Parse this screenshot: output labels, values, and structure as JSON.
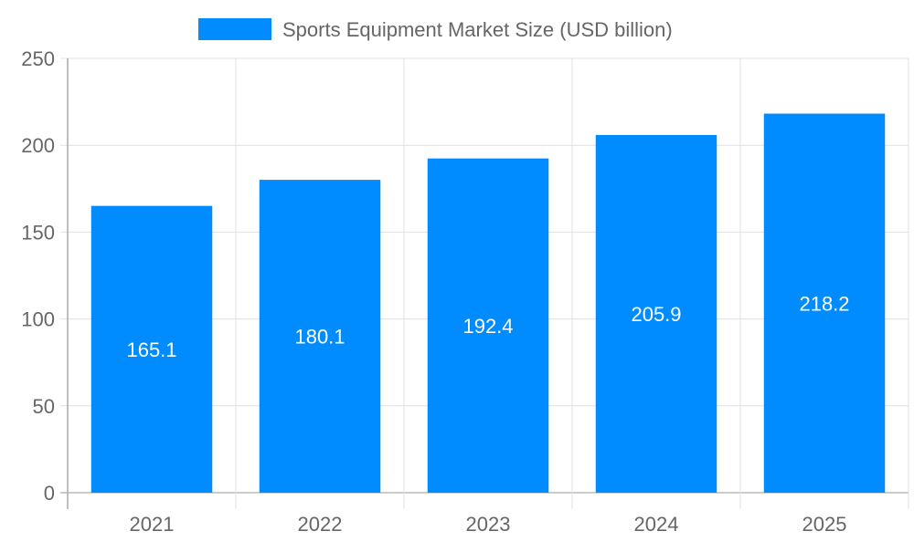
{
  "chart_data": {
    "type": "bar",
    "title": "",
    "legend": {
      "position": "top",
      "entries": [
        "Sports Equipment Market Size (USD billion)"
      ]
    },
    "categories": [
      "2021",
      "2022",
      "2023",
      "2024",
      "2025"
    ],
    "series": [
      {
        "name": "Sports Equipment Market Size (USD billion)",
        "values": [
          165.1,
          180.1,
          192.4,
          205.9,
          218.2
        ],
        "color": "#008cff"
      }
    ],
    "data_labels": [
      "165.1",
      "180.1",
      "192.4",
      "205.9",
      "218.2"
    ],
    "xlabel": "",
    "ylabel": "",
    "ylim": [
      0,
      250
    ],
    "yticks": [
      0,
      50,
      100,
      150,
      200,
      250
    ],
    "grid": true
  }
}
